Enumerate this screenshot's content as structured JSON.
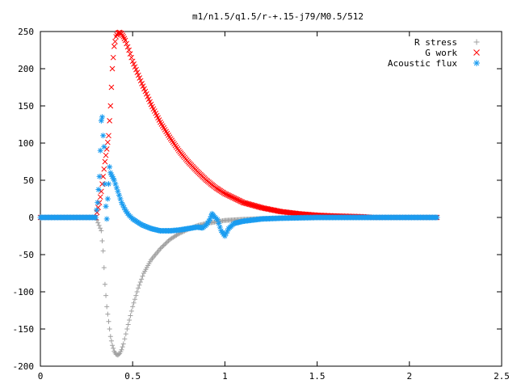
{
  "chart_data": {
    "type": "scatter",
    "title": "m1/n1.5/q1.5/r-+.15-j79/M0.5/512",
    "xlabel": "",
    "ylabel": "",
    "xlim": [
      0,
      2.5
    ],
    "ylim": [
      -200,
      250
    ],
    "x_ticks": [
      0,
      0.5,
      1,
      1.5,
      2,
      2.5
    ],
    "x_tick_labels": [
      "0",
      "0.5",
      "1",
      "1.5",
      "2",
      "2.5"
    ],
    "y_ticks": [
      -200,
      -150,
      -100,
      -50,
      0,
      50,
      100,
      150,
      200,
      250
    ],
    "y_tick_labels": [
      "-200",
      "-150",
      "-100",
      "-50",
      "0",
      "50",
      "100",
      "150",
      "200",
      "250"
    ],
    "grid": false,
    "legend_position": "top-right",
    "series": [
      {
        "name": "R stress",
        "marker": "+",
        "color": "#a0a0a0",
        "x": [
          0,
          0.1,
          0.2,
          0.3,
          0.33,
          0.34,
          0.35,
          0.36,
          0.37,
          0.38,
          0.39,
          0.4,
          0.41,
          0.42,
          0.43,
          0.44,
          0.45,
          0.47,
          0.5,
          0.53,
          0.56,
          0.6,
          0.65,
          0.7,
          0.75,
          0.8,
          0.85,
          0.9,
          0.95,
          1.0,
          1.1,
          1.2,
          1.3,
          1.4,
          1.5,
          1.6,
          1.8,
          2.0,
          2.15
        ],
        "y": [
          0,
          0,
          0,
          0,
          -18,
          -45,
          -90,
          -120,
          -140,
          -160,
          -172,
          -180,
          -184,
          -185,
          -183,
          -178,
          -170,
          -150,
          -120,
          -95,
          -75,
          -57,
          -42,
          -30,
          -22,
          -16,
          -11,
          -8,
          -6,
          -4,
          -2.5,
          -1.5,
          -1,
          -0.5,
          -0.3,
          -0.2,
          -0.1,
          0,
          0
        ]
      },
      {
        "name": "G work",
        "marker": "x",
        "color": "#ff0000",
        "x": [
          0,
          0.1,
          0.2,
          0.3,
          0.32,
          0.33,
          0.34,
          0.35,
          0.36,
          0.37,
          0.38,
          0.39,
          0.4,
          0.41,
          0.42,
          0.43,
          0.44,
          0.45,
          0.46,
          0.48,
          0.5,
          0.55,
          0.6,
          0.65,
          0.7,
          0.75,
          0.8,
          0.85,
          0.9,
          0.95,
          1.0,
          1.05,
          1.1,
          1.2,
          1.3,
          1.4,
          1.5,
          1.6,
          1.75,
          1.8,
          2.0,
          2.15
        ],
        "y": [
          0,
          0,
          0,
          0,
          20,
          35,
          55,
          75,
          92,
          110,
          150,
          200,
          230,
          243,
          248,
          249,
          247,
          243,
          238,
          225,
          210,
          180,
          152,
          128,
          108,
          90,
          75,
          62,
          50,
          40,
          32,
          26,
          20,
          13,
          8,
          5,
          3,
          2,
          1,
          0,
          0,
          0
        ]
      },
      {
        "name": "Acoustic flux",
        "marker": "*",
        "color": "#1a9cf0",
        "x": [
          0,
          0.1,
          0.2,
          0.3,
          0.31,
          0.32,
          0.325,
          0.33,
          0.335,
          0.34,
          0.345,
          0.35,
          0.355,
          0.36,
          0.365,
          0.37,
          0.375,
          0.38,
          0.39,
          0.4,
          0.42,
          0.44,
          0.46,
          0.48,
          0.5,
          0.55,
          0.6,
          0.65,
          0.7,
          0.75,
          0.8,
          0.85,
          0.88,
          0.9,
          0.92,
          0.93,
          0.94,
          0.96,
          0.98,
          1.0,
          1.02,
          1.05,
          1.1,
          1.2,
          1.3,
          1.4,
          1.5,
          1.6,
          1.8,
          2.0,
          2.15
        ],
        "y": [
          0,
          0,
          0,
          0,
          20,
          55,
          90,
          130,
          135,
          110,
          95,
          45,
          15,
          -2,
          25,
          45,
          68,
          60,
          55,
          50,
          35,
          20,
          10,
          3,
          -2,
          -10,
          -15,
          -18,
          -18,
          -17,
          -15,
          -13,
          -14,
          -10,
          -2,
          5,
          2,
          -3,
          -18,
          -25,
          -15,
          -8,
          -5,
          -2,
          -1,
          -0.5,
          0,
          0,
          0,
          0,
          0
        ]
      }
    ]
  }
}
